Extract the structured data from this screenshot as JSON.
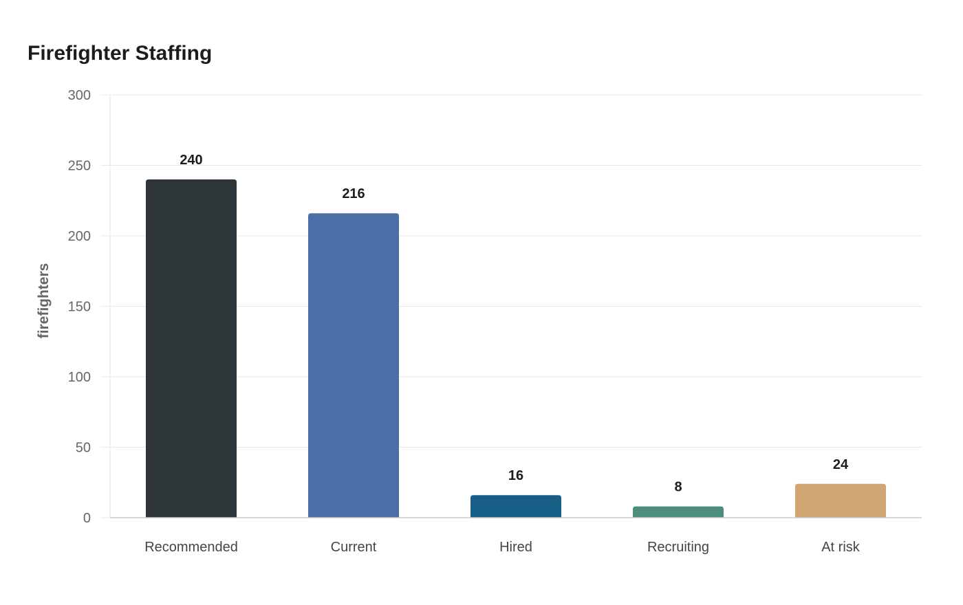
{
  "chart_data": {
    "type": "bar",
    "title": "Firefighter Staffing",
    "xlabel": "",
    "ylabel": "firefighters",
    "ylim": [
      0,
      300
    ],
    "yticks": [
      0,
      50,
      100,
      150,
      200,
      250,
      300
    ],
    "categories": [
      "Recommended",
      "Current",
      "Hired",
      "Recruiting",
      "At risk"
    ],
    "values": [
      240,
      216,
      16,
      8,
      24
    ],
    "data_labels": [
      "240",
      "216",
      "16",
      "8",
      "24"
    ],
    "colors": [
      "#2e3538",
      "#4a6ea5",
      "#175f87",
      "#4e8c7c",
      "#d2a574"
    ],
    "grid": true,
    "legend": "none"
  }
}
